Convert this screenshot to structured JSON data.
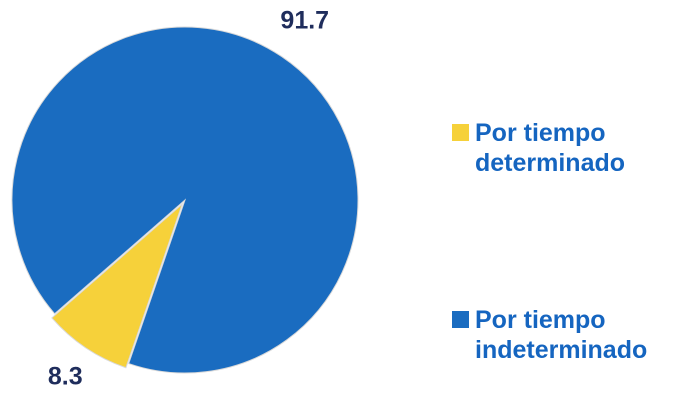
{
  "chart_data": {
    "type": "pie",
    "categories": [
      "Por tiempo determinado",
      "Por tiempo indeterminado"
    ],
    "values": [
      8.3,
      91.7
    ],
    "colors": [
      "#f6d13a",
      "#1a6cc0"
    ],
    "legend": "right"
  }
}
